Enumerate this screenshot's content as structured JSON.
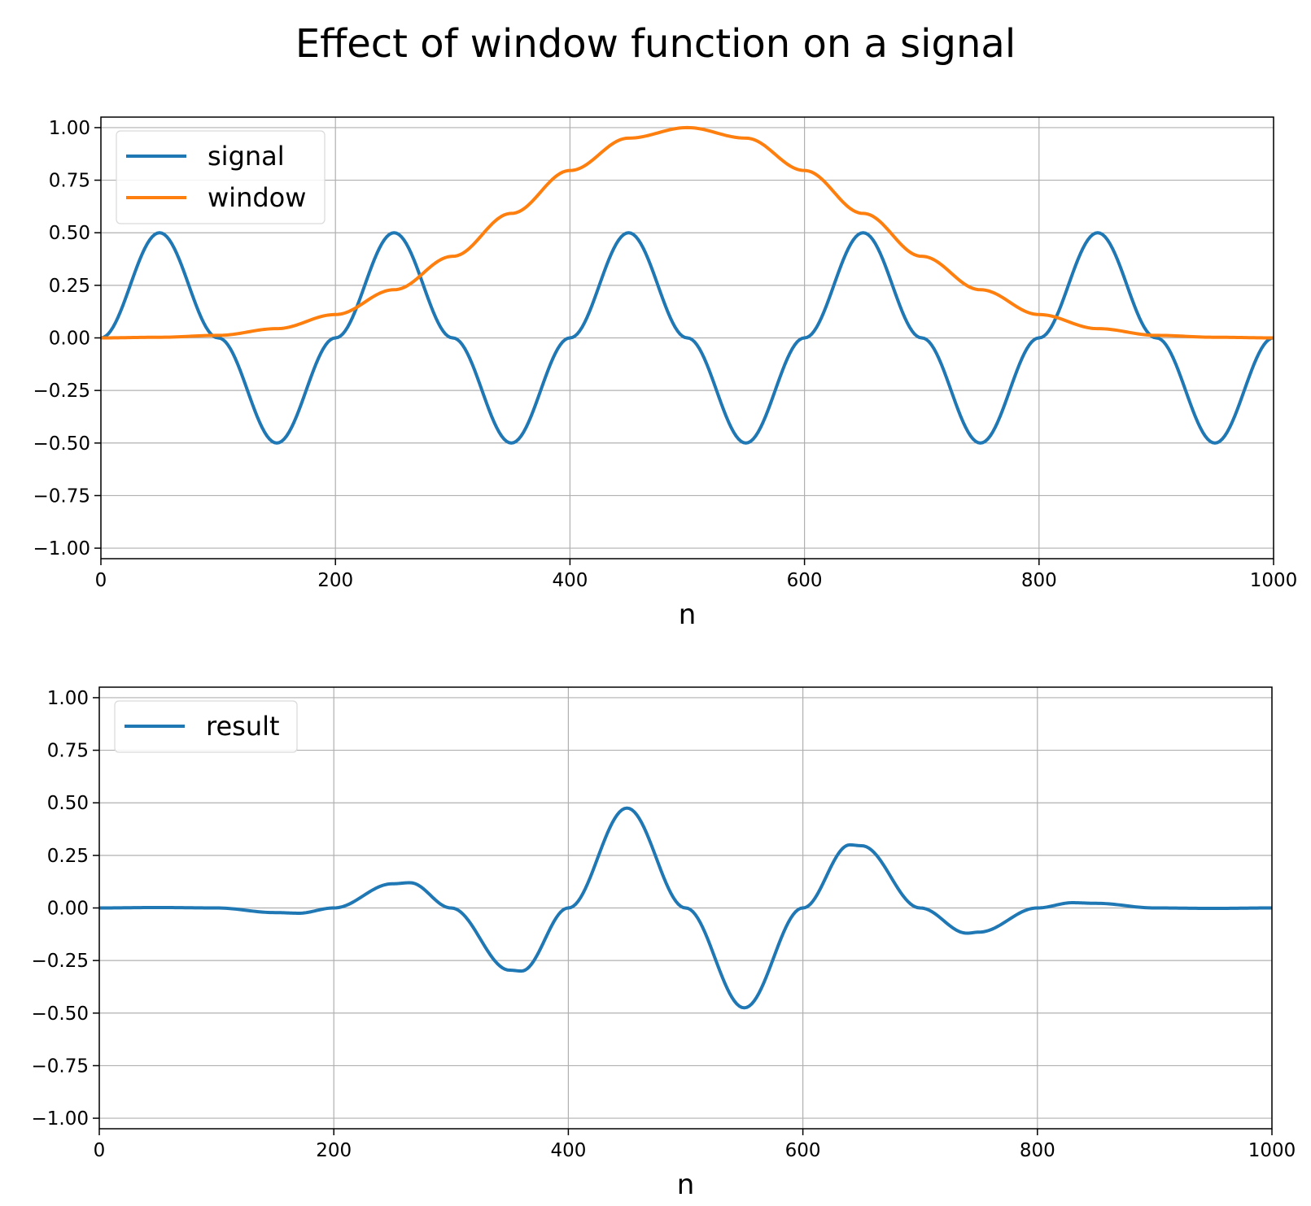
{
  "title": "Effect of window function on a signal",
  "colors": {
    "signal": "#1f77b4",
    "window": "#ff7f0e",
    "result": "#1f77b4",
    "grid": "#b0b0b0",
    "axes": "#000000"
  },
  "chart_data": [
    {
      "type": "line",
      "xlabel": "n",
      "ylabel": "",
      "xlim": [
        0,
        1000
      ],
      "ylim": [
        -1.05,
        1.05
      ],
      "xticks": [
        0,
        200,
        400,
        600,
        800,
        1000
      ],
      "xtick_labels": [
        "0",
        "200",
        "400",
        "600",
        "800",
        "1000"
      ],
      "yticks": [
        1.0,
        0.75,
        0.5,
        0.25,
        0.0,
        -0.25,
        -0.5,
        -0.75,
        -1.0
      ],
      "ytick_labels": [
        "1.00",
        "0.75",
        "0.50",
        "0.25",
        "0.00",
        "−0.25",
        "−0.50",
        "−0.75",
        "−1.00"
      ],
      "grid": true,
      "legend_position": "top-left",
      "x": [
        0,
        50,
        100,
        150,
        200,
        250,
        300,
        350,
        400,
        450,
        500,
        550,
        600,
        650,
        700,
        750,
        800,
        850,
        900,
        950,
        1000
      ],
      "series": [
        {
          "name": "signal",
          "color": "#1f77b4",
          "values": [
            0.0,
            0.5,
            0.0,
            -0.5,
            0.0,
            0.5,
            0.0,
            -0.5,
            0.0,
            0.5,
            0.0,
            -0.5,
            0.0,
            0.5,
            0.0,
            -0.5,
            0.0,
            0.5,
            0.0,
            -0.5,
            0.0
          ]
        },
        {
          "name": "window",
          "color": "#ff7f0e",
          "values": [
            0.0,
            0.003,
            0.012,
            0.044,
            0.111,
            0.229,
            0.388,
            0.592,
            0.796,
            0.95,
            1.0,
            0.95,
            0.796,
            0.592,
            0.388,
            0.229,
            0.111,
            0.044,
            0.012,
            0.003,
            0.0
          ]
        }
      ]
    },
    {
      "type": "line",
      "xlabel": "n",
      "ylabel": "",
      "xlim": [
        0,
        1000
      ],
      "ylim": [
        -1.05,
        1.05
      ],
      "xticks": [
        0,
        200,
        400,
        600,
        800,
        1000
      ],
      "xtick_labels": [
        "0",
        "200",
        "400",
        "600",
        "800",
        "1000"
      ],
      "yticks": [
        1.0,
        0.75,
        0.5,
        0.25,
        0.0,
        -0.25,
        -0.5,
        -0.75,
        -1.0
      ],
      "ytick_labels": [
        "1.00",
        "0.75",
        "0.50",
        "0.25",
        "0.00",
        "−0.25",
        "−0.50",
        "−0.75",
        "−1.00"
      ],
      "grid": true,
      "legend_position": "top-left",
      "x": [
        0,
        50,
        100,
        150,
        170,
        200,
        250,
        265,
        300,
        350,
        360,
        400,
        450,
        500,
        550,
        600,
        640,
        650,
        700,
        740,
        750,
        800,
        830,
        850,
        900,
        950,
        1000
      ],
      "series": [
        {
          "name": "result",
          "color": "#1f77b4",
          "values": [
            0.0,
            0.002,
            0.0,
            -0.022,
            -0.025,
            0.0,
            0.115,
            0.12,
            0.0,
            -0.296,
            -0.3,
            0.0,
            0.475,
            0.0,
            -0.475,
            0.0,
            0.3,
            0.296,
            0.0,
            -0.12,
            -0.115,
            0.0,
            0.025,
            0.022,
            0.0,
            -0.002,
            0.0
          ]
        }
      ]
    }
  ]
}
